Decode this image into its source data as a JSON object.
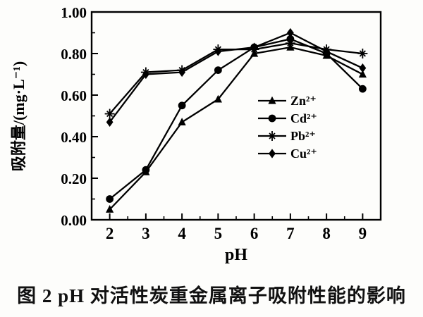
{
  "figure": {
    "caption": "图 2  pH 对活性炭重金属离子吸附性能的影响"
  },
  "chart_data": {
    "type": "line",
    "title": "",
    "xlabel": "pH",
    "ylabel": "吸附量/(mg·L⁻¹)",
    "x": [
      2,
      3,
      4,
      5,
      6,
      7,
      8,
      9
    ],
    "xlim": [
      1.5,
      9.5
    ],
    "ylim": [
      0,
      1.0
    ],
    "x_tick_labels": [
      "2",
      "3",
      "4",
      "5",
      "6",
      "7",
      "8",
      "9"
    ],
    "y_tick_labels": [
      "0.00",
      "0.20",
      "0.40",
      "0.60",
      "0.80",
      "1.00"
    ],
    "y_tick_values": [
      0,
      0.2,
      0.4,
      0.6,
      0.8,
      1.0
    ],
    "x_minor_step": 0.5,
    "y_minor_step": 0.1,
    "grid": false,
    "legend_position": "inside-center-right",
    "line_color": "#000000",
    "background": "#fdfdfb",
    "series": [
      {
        "name": "Zn²⁺",
        "marker": "triangle",
        "values": [
          0.05,
          0.23,
          0.47,
          0.58,
          0.8,
          0.83,
          0.79,
          0.7
        ]
      },
      {
        "name": "Cd²⁺",
        "marker": "circle",
        "values": [
          0.1,
          0.24,
          0.55,
          0.72,
          0.83,
          0.87,
          0.8,
          0.63
        ]
      },
      {
        "name": "Pb²⁺",
        "marker": "star",
        "values": [
          0.51,
          0.71,
          0.72,
          0.82,
          0.82,
          0.85,
          0.82,
          0.8
        ]
      },
      {
        "name": "Cu²⁺",
        "marker": "diamond",
        "values": [
          0.47,
          0.7,
          0.71,
          0.81,
          0.83,
          0.9,
          0.81,
          0.73
        ]
      }
    ]
  }
}
